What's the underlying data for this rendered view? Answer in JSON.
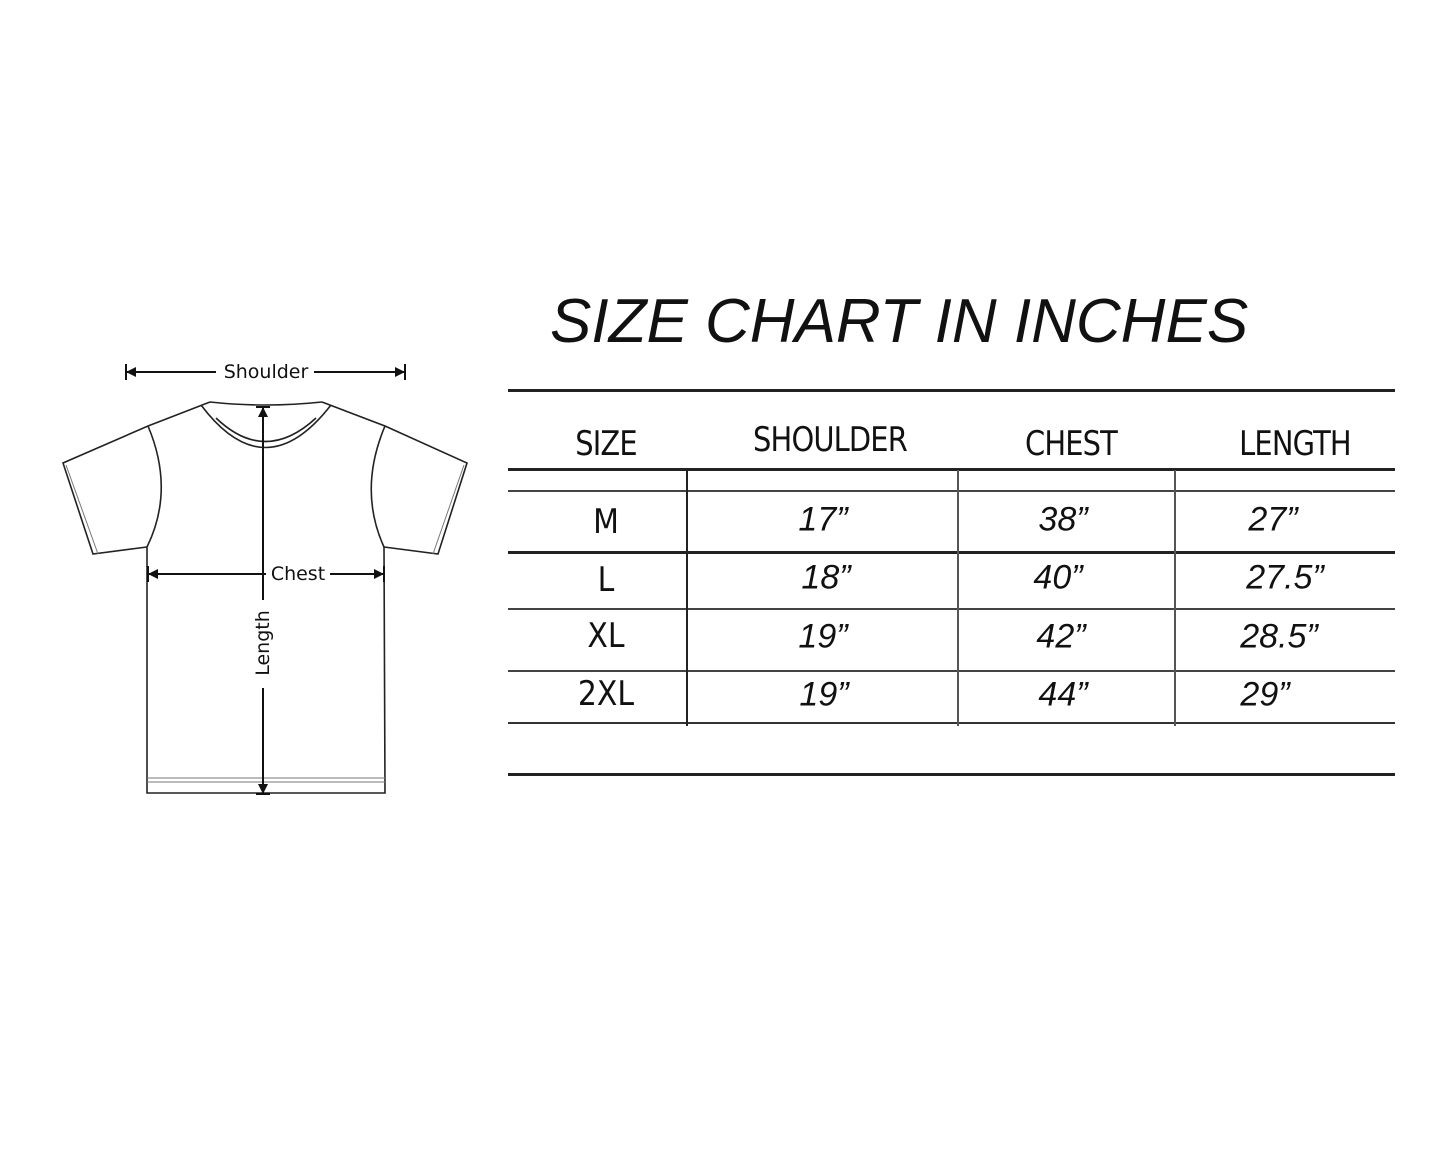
{
  "diagram": {
    "shoulder_label": "Shoulder",
    "chest_label": "Chest",
    "length_label": "Length"
  },
  "table": {
    "title": "SIZE CHART IN INCHES",
    "headers": [
      "SIZE",
      "SHOULDER",
      "CHEST",
      "LENGTH"
    ],
    "rows": [
      {
        "size": "M",
        "shoulder": "17”",
        "chest": "38”",
        "length": "27”"
      },
      {
        "size": "L",
        "shoulder": "18”",
        "chest": "40”",
        "length": "27.5”"
      },
      {
        "size": "XL",
        "shoulder": "19”",
        "chest": "42”",
        "length": "28.5”"
      },
      {
        "size": "2XL",
        "shoulder": "19”",
        "chest": "44”",
        "length": "29”"
      }
    ]
  }
}
